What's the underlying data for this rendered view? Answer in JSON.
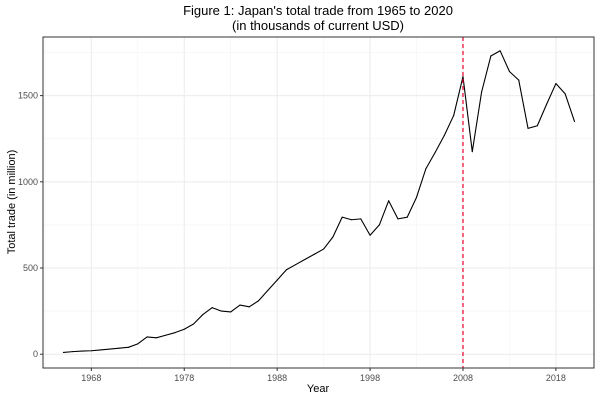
{
  "chart_data": {
    "type": "line",
    "title": "Figure 1: Japan's total trade from 1965 to 2020",
    "subtitle": "(in thousands of current USD)",
    "xlabel": "Year",
    "ylabel": "Total trade (in million)",
    "xlim": [
      1962.8,
      2022.1
    ],
    "ylim": [
      -80,
      1840
    ],
    "x_ticks": [
      {
        "value": 1968,
        "label": "1968"
      },
      {
        "value": 1978,
        "label": "1978"
      },
      {
        "value": 1988,
        "label": "1988"
      },
      {
        "value": 1998,
        "label": "1998"
      },
      {
        "value": 2008,
        "label": "2008"
      },
      {
        "value": 2018,
        "label": "2018"
      }
    ],
    "y_ticks": [
      {
        "value": 0,
        "label": "0"
      },
      {
        "value": 500,
        "label": "500"
      },
      {
        "value": 1000,
        "label": "1000"
      },
      {
        "value": 1500,
        "label": "1500"
      }
    ],
    "grid": true,
    "reference_line": {
      "x": 2008,
      "color": "#e4002b",
      "style": "dashed"
    },
    "series": [
      {
        "color": "#000000",
        "x": [
          1965,
          1966,
          1967,
          1968,
          1969,
          1970,
          1971,
          1972,
          1973,
          1974,
          1975,
          1976,
          1977,
          1978,
          1979,
          1980,
          1981,
          1982,
          1983,
          1984,
          1985,
          1986,
          1987,
          1988,
          1989,
          1990,
          1991,
          1992,
          1993,
          1994,
          1995,
          1996,
          1997,
          1998,
          1999,
          2000,
          2001,
          2002,
          2003,
          2004,
          2005,
          2006,
          2007,
          2008,
          2009,
          2010,
          2011,
          2012,
          2013,
          2014,
          2015,
          2016,
          2017,
          2018,
          2019,
          2020
        ],
        "values": [
          10,
          15,
          18,
          20,
          25,
          30,
          35,
          40,
          60,
          100,
          95,
          110,
          125,
          145,
          175,
          230,
          270,
          250,
          245,
          285,
          275,
          310,
          370,
          430,
          490,
          520,
          550,
          580,
          610,
          680,
          795,
          780,
          785,
          690,
          750,
          890,
          785,
          795,
          910,
          1075,
          1170,
          1270,
          1385,
          1610,
          1175,
          1520,
          1730,
          1760,
          1640,
          1590,
          1310,
          1325,
          1450,
          1570,
          1510,
          1350
        ]
      }
    ]
  }
}
